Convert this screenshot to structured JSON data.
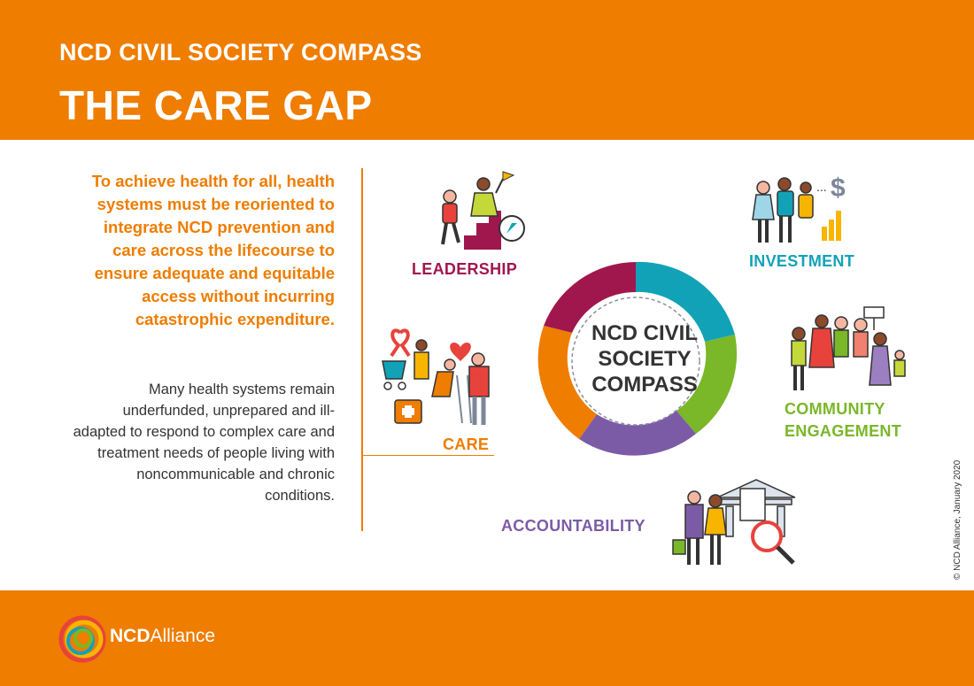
{
  "header": {
    "subtitle": "NCD CIVIL SOCIETY COMPASS",
    "title": "THE CARE GAP"
  },
  "intro": {
    "lead": "To achieve health for all, health systems must be reoriented to integrate NCD prevention and care across the lifecourse to ensure adequate and equitable access without incurring catastrophic expenditure.",
    "body": "Many health systems remain underfunded, unprepared and ill-adapted to respond to complex care and treatment needs of people living with noncommunicable and chronic conditions."
  },
  "compass": {
    "center_lines": [
      "NCD CIVIL",
      "SOCIETY",
      "COMPASS"
    ],
    "pillars": {
      "leadership": {
        "label": "LEADERSHIP",
        "color": "#A0174E"
      },
      "investment": {
        "label": "INVESTMENT",
        "color": "#12A2B8"
      },
      "community": {
        "label_line1": "COMMUNITY",
        "label_line2": "ENGAGEMENT",
        "color": "#7AB729"
      },
      "accountability": {
        "label": "ACCOUNTABILITY",
        "color": "#7C5BA6"
      },
      "care": {
        "label": "CARE",
        "color": "#EE7D00"
      }
    }
  },
  "footer": {
    "brand_bold": "NCD",
    "brand_regular": "Alliance"
  },
  "copyright": "© NCD Alliance, January 2020",
  "colors": {
    "orange": "#EE7D00",
    "text": "#333333"
  }
}
